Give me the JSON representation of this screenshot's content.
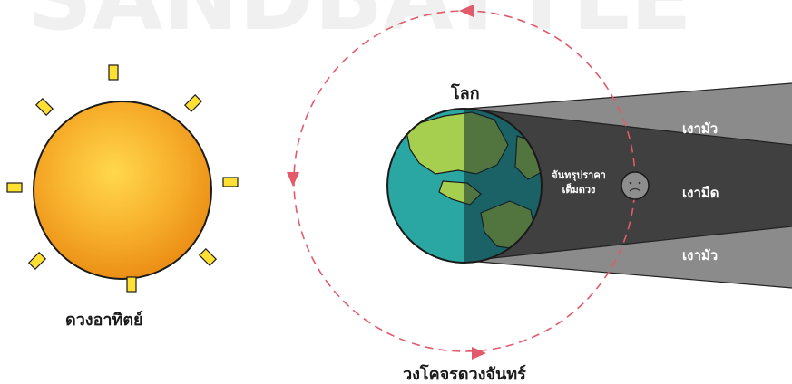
{
  "labels": {
    "sun": "ดวงอาทิตย์",
    "earth": "โลก",
    "moon_line1": "จันทรุปราคา",
    "moon_line2": "เต็มดวง",
    "penumbra_top": "เงามัว",
    "umbra": "เงามืด",
    "penumbra_bottom": "เงามัว",
    "orbit": "วงโคจรดวงจันทร์",
    "watermark": "SANDBATTLE"
  },
  "colors": {
    "sun": "#f6a623",
    "sun_light": "#ffd24a",
    "sun_rays": "#ffe033",
    "ocean": "#2aa7a3",
    "land": "#a7cf4f",
    "earth_shadow": "#1d3f45",
    "umbra": "#404040",
    "penumbra": "#8a8a8a",
    "orbit": "#e25b6b",
    "moon": "#8d8d8d",
    "watermark": "#eeeeee"
  },
  "icons": {
    "sun": "sun-icon",
    "earth": "earth-icon",
    "moon": "moon-icon",
    "orbit_arrow": "orbit-arrow-icon"
  }
}
